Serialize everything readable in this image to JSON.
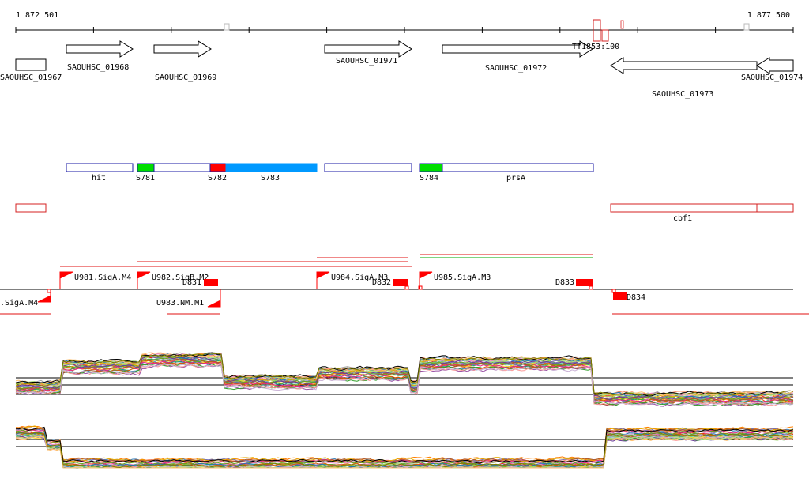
{
  "coordinates": {
    "start": "1 872 501",
    "end": "1 877 500"
  },
  "colors": {
    "gene_outline": "#000000",
    "operon_outline": "#1a1aa6",
    "operon_green": "#00dd00",
    "operon_red": "#ff0000",
    "operon_blue": "#0099ff",
    "cds_red_outline": "#d42020",
    "promoter_red": "#ff0000",
    "terminator_red": "#ff0000",
    "transcript_red": "#e01010",
    "transcript_green": "#00aa00",
    "baseline": "#000000",
    "expression_palette": [
      "#e41a1c",
      "#377eb8",
      "#4daf4a",
      "#984ea3",
      "#ff7f00",
      "#a65628",
      "#f781bf",
      "#999999",
      "#66c2a5",
      "#fc8d62",
      "#8da0cb",
      "#e78ac3",
      "#a6d854",
      "#ffd92f",
      "#1b9e77",
      "#d95f02",
      "#7570b3",
      "#e7298a",
      "#66a61e",
      "#e6ab02",
      "#b15928",
      "#6a3d9a",
      "#33a02c",
      "#1f78b4",
      "#fb9a99",
      "#cab2d6",
      "#b2df8a",
      "#fdbf6f",
      "#000000",
      "#808000"
    ]
  },
  "gene_track": {
    "genes": [
      {
        "name": "SAOUHSC_01967",
        "strand": "+"
      },
      {
        "name": "SAOUHSC_01968",
        "strand": "+"
      },
      {
        "name": "SAOUHSC_01969",
        "strand": "+"
      },
      {
        "name": "SAOUHSC_01971",
        "strand": "+"
      },
      {
        "name": "SAOUHSC_01972",
        "strand": "+"
      },
      {
        "name": "SAOUHSC_01973",
        "strand": "-"
      },
      {
        "name": "SAOUHSC_01974",
        "strand": "-"
      }
    ],
    "markers": [
      {
        "label": "TT1853:100"
      }
    ]
  },
  "operon_track": {
    "segments": [
      {
        "label": "hit",
        "fill": "none"
      },
      {
        "label": "S781",
        "fill": "green"
      },
      {
        "label": "",
        "fill": "none"
      },
      {
        "label": "S782",
        "fill": "red"
      },
      {
        "label": "S783",
        "fill": "blue"
      },
      {
        "label": "",
        "fill": "none"
      },
      {
        "label": "S784",
        "fill": "green"
      },
      {
        "label": "prsA",
        "fill": "none"
      }
    ]
  },
  "cds_track": {
    "items": [
      {
        "label": ""
      },
      {
        "label": "cbf1"
      }
    ]
  },
  "promoter_track": {
    "promoters": [
      {
        "label": ".SigA.M4",
        "strand": "-"
      },
      {
        "label": "U981.SigA.M4",
        "strand": "+"
      },
      {
        "label": "U982.SigB.M2",
        "strand": "+"
      },
      {
        "label": "U983.NM.M1",
        "strand": "-"
      },
      {
        "label": "U984.SigA.M3",
        "strand": "+"
      },
      {
        "label": "U985.SigA.M3",
        "strand": "+"
      }
    ],
    "terminators": [
      {
        "label": "D831"
      },
      {
        "label": "D832"
      },
      {
        "label": "D833"
      },
      {
        "label": "D834"
      }
    ]
  },
  "expression": {
    "plus_strand_profile": [
      {
        "from": 0.0,
        "to": 0.06,
        "level": 0.35
      },
      {
        "from": 0.06,
        "to": 0.16,
        "level": 0.72
      },
      {
        "from": 0.16,
        "to": 0.265,
        "level": 0.85
      },
      {
        "from": 0.265,
        "to": 0.39,
        "level": 0.45
      },
      {
        "from": 0.39,
        "to": 0.505,
        "level": 0.6
      },
      {
        "from": 0.505,
        "to": 0.52,
        "level": 0.35
      },
      {
        "from": 0.52,
        "to": 0.74,
        "level": 0.78
      },
      {
        "from": 0.74,
        "to": 1.0,
        "level": 0.15
      }
    ],
    "minus_strand_profile": [
      {
        "from": 0.0,
        "to": 0.04,
        "level": 0.75
      },
      {
        "from": 0.04,
        "to": 0.06,
        "level": 0.5
      },
      {
        "from": 0.06,
        "to": 0.76,
        "level": 0.08
      },
      {
        "from": 0.76,
        "to": 1.0,
        "level": 0.72
      }
    ]
  }
}
